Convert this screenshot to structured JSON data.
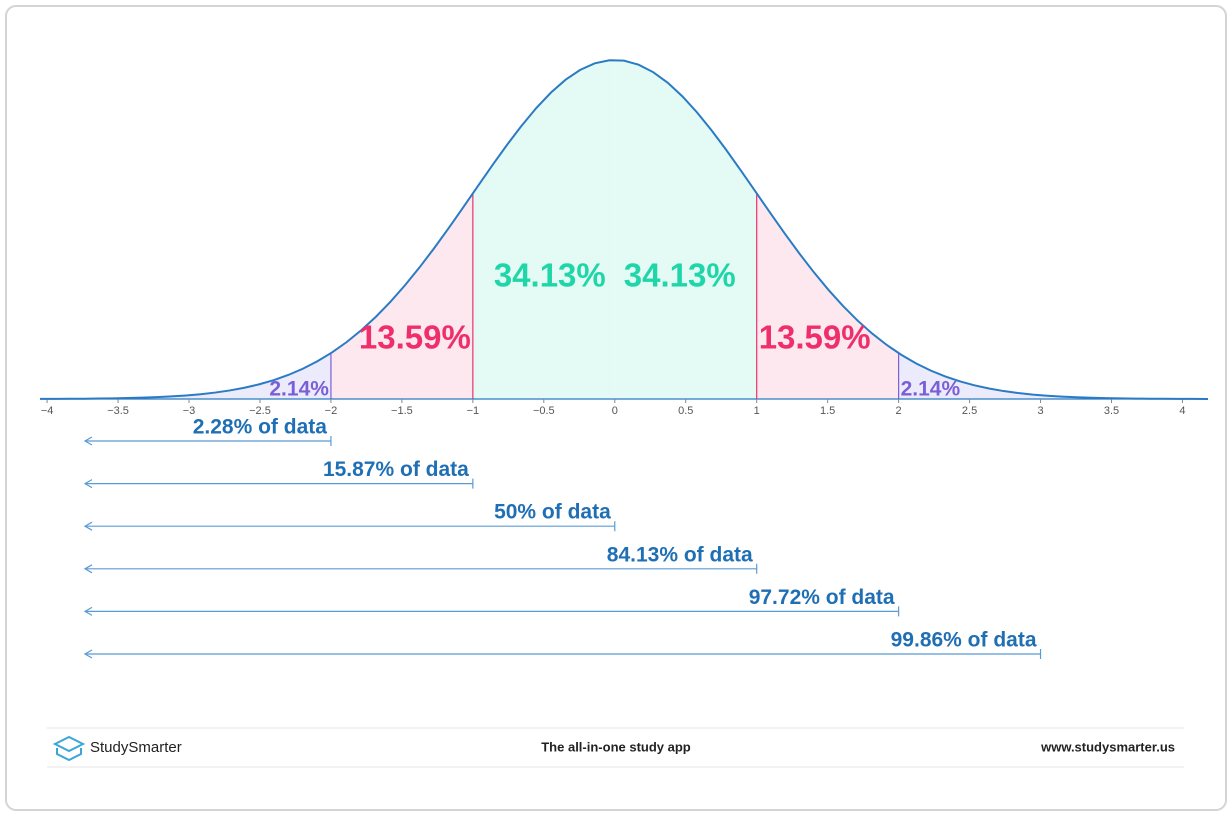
{
  "chart_data": {
    "type": "normal-distribution",
    "xlim": [
      -4.05,
      4.18
    ],
    "ylim": [
      0,
      0.3989
    ],
    "xticks": [
      {
        "value": -4,
        "label": "−4"
      },
      {
        "value": -3.5,
        "label": "−3.5"
      },
      {
        "value": -3,
        "label": "−3"
      },
      {
        "value": -2.5,
        "label": "−2.5"
      },
      {
        "value": -2,
        "label": "−2"
      },
      {
        "value": -1.5,
        "label": "−1.5"
      },
      {
        "value": -1,
        "label": "−1"
      },
      {
        "value": -0.5,
        "label": "−0.5"
      },
      0,
      0.5,
      1,
      1.5,
      2,
      2.5,
      3,
      3.5,
      4
    ],
    "curve_color": "#2a7bc4",
    "regions": [
      {
        "bounds": [
          -3,
          -2
        ],
        "value": 2.14,
        "value_label": "2.14%",
        "color": "#7b5fd6",
        "fill": "#ecebfb"
      },
      {
        "bounds": [
          -2,
          -1
        ],
        "value": 13.59,
        "value_label": "13.59%",
        "color": "#ef2f6c",
        "fill": "#fde8ef"
      },
      {
        "bounds": [
          -1,
          0
        ],
        "value": 34.13,
        "value_label": "34.13%",
        "color": "#1fd6a8",
        "fill": "#e3fbf4"
      },
      {
        "bounds": [
          0,
          1
        ],
        "value": 34.13,
        "value_label": "34.13%",
        "color": "#1fd6a8",
        "fill": "#e3fbf4"
      },
      {
        "bounds": [
          1,
          2
        ],
        "value": 13.59,
        "value_label": "13.59%",
        "color": "#ef2f6c",
        "fill": "#fde8ef"
      },
      {
        "bounds": [
          2,
          3
        ],
        "value": 2.14,
        "value_label": "2.14%",
        "color": "#7b5fd6",
        "fill": "#ecebfb"
      }
    ],
    "cumulative": {
      "color": "#1f6fb5",
      "arrow_color": "#5b9bd5",
      "ends": [
        -2,
        -1,
        0,
        1,
        2,
        3
      ],
      "values": [
        2.28,
        15.87,
        50,
        84.13,
        97.72,
        99.86
      ],
      "value_labels": [
        "2.28% of data",
        "15.87% of data",
        "50% of data",
        "84.13% of data",
        "97.72% of data",
        "99.86% of data"
      ]
    }
  },
  "footer": {
    "brand": "StudySmarter",
    "tagline": "The all-in-one study app",
    "url": "www.studysmarter.us"
  }
}
